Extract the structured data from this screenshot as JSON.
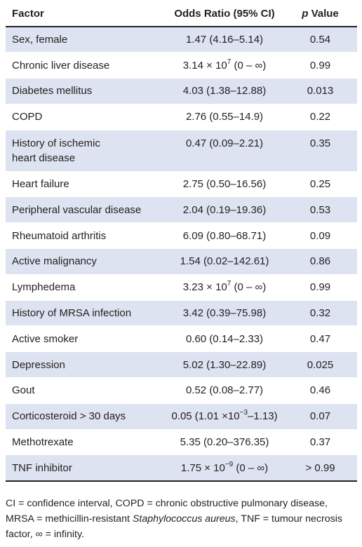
{
  "table": {
    "headers": {
      "factor": "Factor",
      "odds_ratio": "Odds Ratio (95% CI)",
      "p_italic": "p",
      "p_rest": " Value"
    },
    "rows": [
      {
        "factor": "Sex, female",
        "or_base": "1.47 (4.16–5.14)",
        "or_sup": "",
        "or_tail": "",
        "p": "0.54"
      },
      {
        "factor": "Chronic liver disease",
        "or_base": "3.14 × 10",
        "or_sup": "7",
        "or_tail": " (0 – ∞)",
        "p": "0.99"
      },
      {
        "factor": "Diabetes mellitus",
        "or_base": "4.03 (1.38–12.88)",
        "or_sup": "",
        "or_tail": "",
        "p": "0.013"
      },
      {
        "factor": "COPD",
        "or_base": "2.76 (0.55–14.9)",
        "or_sup": "",
        "or_tail": "",
        "p": "0.22"
      },
      {
        "factor": "History of ischemic heart disease",
        "or_base": "0.47 (0.09–2.21)",
        "or_sup": "",
        "or_tail": "",
        "p": "0.35"
      },
      {
        "factor": "Heart failure",
        "or_base": "2.75 (0.50–16.56)",
        "or_sup": "",
        "or_tail": "",
        "p": "0.25"
      },
      {
        "factor": "Peripheral vascular disease",
        "or_base": "2.04 (0.19–19.36)",
        "or_sup": "",
        "or_tail": "",
        "p": "0.53"
      },
      {
        "factor": "Rheumatoid arthritis",
        "or_base": "6.09 (0.80–68.71)",
        "or_sup": "",
        "or_tail": "",
        "p": "0.09"
      },
      {
        "factor": "Active malignancy",
        "or_base": "1.54 (0.02–142.61)",
        "or_sup": "",
        "or_tail": "",
        "p": "0.86"
      },
      {
        "factor": "Lymphedema",
        "or_base": "3.23 × 10",
        "or_sup": "7",
        "or_tail": " (0 – ∞)",
        "p": "0.99"
      },
      {
        "factor": "History of MRSA infection",
        "or_base": "3.42 (0.39–75.98)",
        "or_sup": "",
        "or_tail": "",
        "p": "0.32"
      },
      {
        "factor": "Active smoker",
        "or_base": "0.60 (0.14–2.33)",
        "or_sup": "",
        "or_tail": "",
        "p": "0.47"
      },
      {
        "factor": "Depression",
        "or_base": "5.02 (1.30–22.89)",
        "or_sup": "",
        "or_tail": "",
        "p": "0.025"
      },
      {
        "factor": "Gout",
        "or_base": "0.52 (0.08–2.77)",
        "or_sup": "",
        "or_tail": "",
        "p": "0.46"
      },
      {
        "factor": "Corticosteroid > 30 days",
        "or_base": "0.05 (1.01 ×10",
        "or_sup": "−3",
        "or_tail": "–1.13)",
        "p": "0.07"
      },
      {
        "factor": "Methotrexate",
        "or_base": "5.35 (0.20–376.35)",
        "or_sup": "",
        "or_tail": "",
        "p": "0.37"
      },
      {
        "factor": "TNF inhibitor",
        "or_base": "1.75 × 10",
        "or_sup": "−9",
        "or_tail": " (0 – ∞)",
        "p": "> 0.99"
      }
    ]
  },
  "footnote": {
    "part1": "CI = confidence interval, COPD = chronic obstructive pulmonary disease, MRSA = methicillin-resistant ",
    "italic": "Staphylococcus aureus",
    "part2": ", TNF = tumour necrosis factor, ∞ = infinity."
  }
}
